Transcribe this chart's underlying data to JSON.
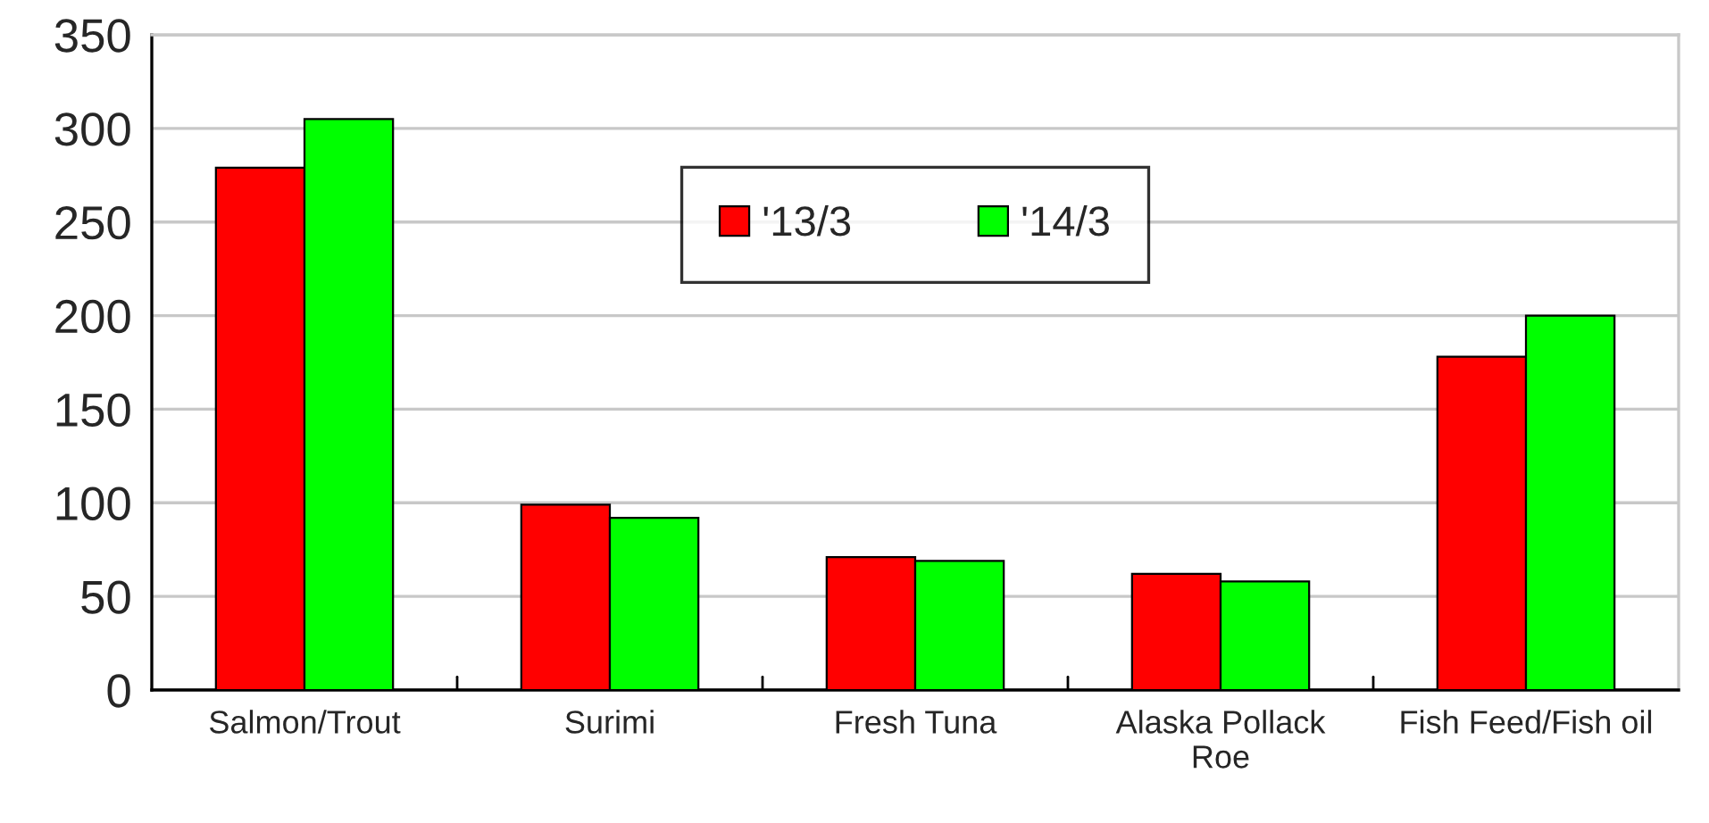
{
  "chart_data": {
    "type": "bar",
    "categories": [
      "Salmon/Trout",
      "Surimi",
      "Fresh Tuna",
      "Alaska Pollack\nRoe",
      "Fish Feed/Fish oil"
    ],
    "series": [
      {
        "name": "'13/3",
        "color": "#ff0000",
        "values": [
          279,
          99,
          71,
          62,
          178
        ]
      },
      {
        "name": "'14/3",
        "color": "#00ff00",
        "values": [
          305,
          92,
          69,
          58,
          200
        ]
      }
    ],
    "ylim": [
      0,
      350
    ],
    "yticks": [
      0,
      50,
      100,
      150,
      200,
      250,
      300,
      350
    ],
    "grid": "y",
    "legend": "top"
  }
}
